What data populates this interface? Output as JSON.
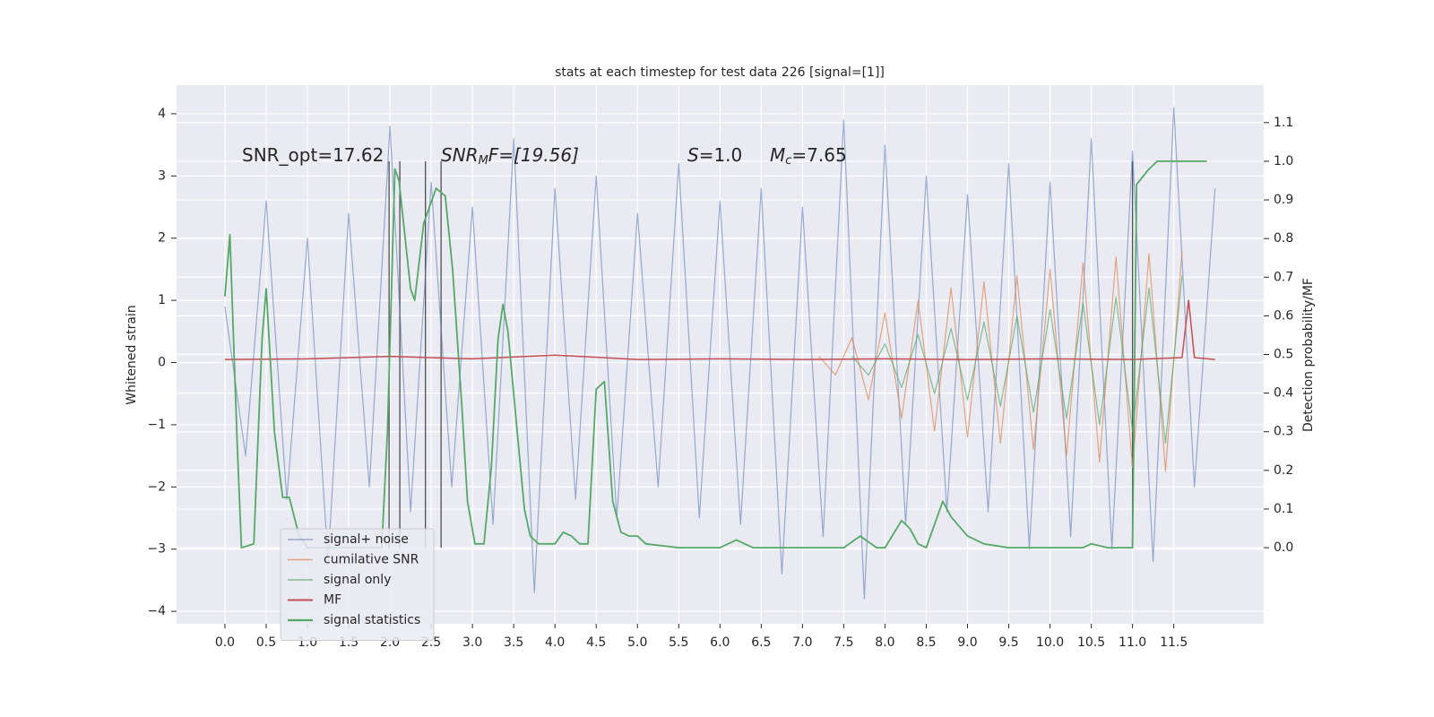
{
  "chart_data": {
    "type": "line",
    "title": "stats at each timestep for test data 226 [signal=[1]]",
    "ylabel": "Whitened strain",
    "y2label": "Detection probability/MF",
    "annotations": [
      [
        "SNR_opt=17.62"
      ],
      [
        "SNR",
        "M",
        "F=[19.56]"
      ],
      [
        "S",
        "=1.0"
      ],
      [
        "M",
        "c",
        "=7.65"
      ]
    ],
    "grid": true,
    "legend": "lower left",
    "xlim": [
      -0.586,
      12.59
    ],
    "ylim": [
      -4.2,
      4.46
    ],
    "y2lim": [
      -0.197,
      1.197
    ],
    "xticks": [
      {
        "value": 0,
        "label": "0.0"
      },
      0.5,
      {
        "value": 1,
        "label": "1.0"
      },
      1.5,
      {
        "value": 2,
        "label": "2.0"
      },
      2.5,
      {
        "value": 3,
        "label": "3.0"
      },
      3.5,
      {
        "value": 4,
        "label": "4.0"
      },
      4.5,
      {
        "value": 5,
        "label": "5.0"
      },
      5.5,
      {
        "value": 6,
        "label": "6.0"
      },
      6.5,
      {
        "value": 7,
        "label": "7.0"
      },
      7.5,
      {
        "value": 8,
        "label": "8.0"
      },
      8.5,
      {
        "value": 9,
        "label": "9.0"
      },
      9.5,
      {
        "value": 10,
        "label": "10.0"
      },
      10.5,
      {
        "value": 11,
        "label": "11.0"
      },
      11.5
    ],
    "yticks": [
      {
        "value": -4,
        "label": "−4"
      },
      {
        "value": -3,
        "label": "−3"
      },
      {
        "value": -2,
        "label": "−2"
      },
      {
        "value": -1,
        "label": "−1"
      },
      0,
      1,
      2,
      3,
      4
    ],
    "y2ticks": [
      {
        "value": 0,
        "label": "0.0"
      },
      0.1,
      0.2,
      0.3,
      0.4,
      0.5,
      0.6,
      0.7,
      0.8,
      0.9,
      {
        "value": 1,
        "label": "1.0"
      },
      1.1
    ],
    "vlines": [
      1.99,
      2.12,
      2.43,
      2.62,
      11.0
    ],
    "vline_color": "#333333",
    "series": [
      {
        "name": "signal+ noise",
        "color": "#4c72b0",
        "x": [
          0,
          0.25,
          0.5,
          0.75,
          1,
          1.25,
          1.5,
          1.75,
          2,
          2.25,
          2.5,
          2.75,
          3,
          3.25,
          3.5,
          3.75,
          4,
          4.25,
          4.5,
          4.75,
          5,
          5.25,
          5.5,
          5.75,
          6,
          6.25,
          6.5,
          6.75,
          7,
          7.25,
          7.5,
          7.75,
          8,
          8.25,
          8.5,
          8.75,
          9,
          9.25,
          9.5,
          9.75,
          10,
          10.25,
          10.5,
          10.75,
          11,
          11.25,
          11.5,
          11.75,
          12
        ],
        "values": [
          0.9,
          -1.5,
          2.6,
          -2.2,
          2.0,
          -3.2,
          2.4,
          -2.0,
          3.8,
          -2.4,
          2.9,
          -2.0,
          2.5,
          -2.6,
          3.6,
          -3.7,
          2.8,
          -2.2,
          3.0,
          -2.5,
          2.4,
          -2.0,
          3.2,
          -2.5,
          2.6,
          -2.6,
          2.8,
          -3.4,
          2.5,
          -2.8,
          3.9,
          -3.8,
          3.5,
          -2.6,
          3.0,
          -2.4,
          2.7,
          -2.4,
          3.2,
          -3.0,
          2.9,
          -2.8,
          3.6,
          -3.0,
          3.4,
          -3.2,
          4.1,
          -2.0,
          2.8
        ]
      },
      {
        "name": "cumilative SNR",
        "color": "#dd8452",
        "x": [
          7.2,
          7.4,
          7.6,
          7.8,
          8.0,
          8.2,
          8.4,
          8.6,
          8.8,
          9.0,
          9.2,
          9.4,
          9.6,
          9.8,
          10.0,
          10.2,
          10.4,
          10.6,
          10.8,
          11.0,
          11.2,
          11.4,
          11.6
        ],
        "values": [
          0.1,
          -0.2,
          0.4,
          -0.6,
          0.8,
          -0.9,
          1.0,
          -1.1,
          1.2,
          -1.2,
          1.3,
          -1.3,
          1.4,
          -1.4,
          1.5,
          -1.5,
          1.6,
          -1.6,
          1.7,
          -1.7,
          1.75,
          -1.75,
          1.8
        ]
      },
      {
        "name": "signal only",
        "color": "#55a868",
        "x": [
          7.6,
          7.8,
          8.0,
          8.2,
          8.4,
          8.6,
          8.8,
          9.0,
          9.2,
          9.4,
          9.6,
          9.8,
          10.0,
          10.2,
          10.4,
          10.6,
          10.8,
          11.0,
          11.2,
          11.4,
          11.6
        ],
        "values": [
          0.1,
          -0.2,
          0.3,
          -0.4,
          0.45,
          -0.5,
          0.55,
          -0.6,
          0.65,
          -0.7,
          0.75,
          -0.8,
          0.85,
          -0.9,
          0.95,
          -1.0,
          1.05,
          -1.1,
          1.2,
          -1.3,
          1.4
        ]
      },
      {
        "name": "MF",
        "color": "#c44e52",
        "x": [
          0,
          1,
          2,
          3,
          4,
          5,
          6,
          7,
          8,
          9,
          10,
          11,
          11.6,
          11.68,
          11.75,
          12.0
        ],
        "values": [
          0.05,
          0.06,
          0.1,
          0.06,
          0.12,
          0.05,
          0.06,
          0.05,
          0.06,
          0.05,
          0.06,
          0.05,
          0.08,
          1.0,
          0.08,
          0.05
        ]
      },
      {
        "name": "signal statistics",
        "color": "#55a868",
        "axis": "y2",
        "x": [
          0,
          0.06,
          0.15,
          0.2,
          0.35,
          0.45,
          0.5,
          0.6,
          0.7,
          0.78,
          0.9,
          1.0,
          1.9,
          1.97,
          2.06,
          2.11,
          2.25,
          2.3,
          2.41,
          2.56,
          2.67,
          2.76,
          2.87,
          2.94,
          3.03,
          3.14,
          3.23,
          3.31,
          3.37,
          3.43,
          3.63,
          3.7,
          3.8,
          4.0,
          4.1,
          4.2,
          4.3,
          4.4,
          4.5,
          4.6,
          4.7,
          4.8,
          4.9,
          5.0,
          5.1,
          5.5,
          6.0,
          6.2,
          6.4,
          7.0,
          7.5,
          7.7,
          7.9,
          8.0,
          8.2,
          8.3,
          8.4,
          8.5,
          8.7,
          8.8,
          9.0,
          9.2,
          9.5,
          10.0,
          10.4,
          10.5,
          10.7,
          11.0,
          11.05,
          11.2,
          11.3,
          11.5,
          11.9
        ],
        "values": [
          0.65,
          0.81,
          0.26,
          0.0,
          0.01,
          0.54,
          0.67,
          0.3,
          0.13,
          0.13,
          0.03,
          0.0,
          0.0,
          0.3,
          0.98,
          0.95,
          0.67,
          0.64,
          0.84,
          0.93,
          0.91,
          0.72,
          0.37,
          0.12,
          0.01,
          0.01,
          0.21,
          0.54,
          0.63,
          0.56,
          0.1,
          0.03,
          0.01,
          0.01,
          0.04,
          0.03,
          0.01,
          0.01,
          0.41,
          0.43,
          0.12,
          0.04,
          0.03,
          0.03,
          0.01,
          0.0,
          0.0,
          0.02,
          0.0,
          0.0,
          0.0,
          0.03,
          0.0,
          0.0,
          0.07,
          0.05,
          0.01,
          0.0,
          0.12,
          0.08,
          0.03,
          0.01,
          0.0,
          0.0,
          0.0,
          0.01,
          0.0,
          0.0,
          0.94,
          0.98,
          1.0,
          1.0,
          1.0
        ]
      }
    ]
  }
}
